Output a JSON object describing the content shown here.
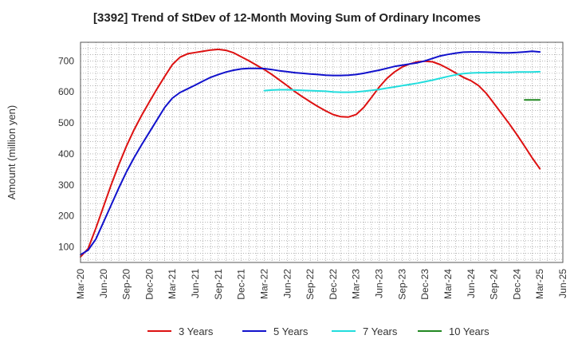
{
  "chart_data": {
    "type": "line",
    "title": "[3392]  Trend of StDev of 12-Month Moving Sum of Ordinary Incomes",
    "xlabel": "",
    "ylabel": "Amount (million yen)",
    "x_tick_labels": [
      "Mar-20",
      "Jun-20",
      "Sep-20",
      "Dec-20",
      "Mar-21",
      "Jun-21",
      "Sep-21",
      "Dec-21",
      "Mar-22",
      "Jun-22",
      "Sep-22",
      "Dec-22",
      "Mar-23",
      "Jun-23",
      "Sep-23",
      "Dec-23",
      "Mar-24",
      "Jun-24",
      "Sep-24",
      "Dec-24",
      "Mar-25",
      "Jun-25"
    ],
    "y_ticks": [
      100,
      200,
      300,
      400,
      500,
      600,
      700
    ],
    "ylim": [
      50,
      760
    ],
    "grid": true,
    "legend_position": "bottom",
    "series": [
      {
        "name": "3 Years",
        "color": "#dd1111",
        "points": [
          [
            "Mar-20",
            68
          ],
          [
            "Apr-20",
            95
          ],
          [
            "May-20",
            160
          ],
          [
            "Jun-20",
            230
          ],
          [
            "Jul-20",
            300
          ],
          [
            "Aug-20",
            365
          ],
          [
            "Sep-20",
            425
          ],
          [
            "Oct-20",
            478
          ],
          [
            "Nov-20",
            525
          ],
          [
            "Dec-20",
            568
          ],
          [
            "Jan-21",
            610
          ],
          [
            "Feb-21",
            650
          ],
          [
            "Mar-21",
            688
          ],
          [
            "Apr-21",
            712
          ],
          [
            "May-21",
            723
          ],
          [
            "Jun-21",
            727
          ],
          [
            "Jul-21",
            731
          ],
          [
            "Aug-21",
            735
          ],
          [
            "Sep-21",
            737
          ],
          [
            "Oct-21",
            734
          ],
          [
            "Nov-21",
            726
          ],
          [
            "Dec-21",
            713
          ],
          [
            "Jan-22",
            700
          ],
          [
            "Feb-22",
            686
          ],
          [
            "Mar-22",
            672
          ],
          [
            "Apr-22",
            656
          ],
          [
            "May-22",
            638
          ],
          [
            "Jun-22",
            620
          ],
          [
            "Jul-22",
            601
          ],
          [
            "Aug-22",
            584
          ],
          [
            "Sep-22",
            568
          ],
          [
            "Oct-22",
            553
          ],
          [
            "Nov-22",
            539
          ],
          [
            "Dec-22",
            527
          ],
          [
            "Jan-23",
            520
          ],
          [
            "Feb-23",
            519
          ],
          [
            "Mar-23",
            527
          ],
          [
            "Apr-23",
            550
          ],
          [
            "May-23",
            582
          ],
          [
            "Jun-23",
            615
          ],
          [
            "Jul-23",
            643
          ],
          [
            "Aug-23",
            664
          ],
          [
            "Sep-23",
            680
          ],
          [
            "Oct-23",
            690
          ],
          [
            "Nov-23",
            697
          ],
          [
            "Dec-23",
            699
          ],
          [
            "Jan-24",
            697
          ],
          [
            "Feb-24",
            688
          ],
          [
            "Mar-24",
            675
          ],
          [
            "Apr-24",
            661
          ],
          [
            "May-24",
            647
          ],
          [
            "Jun-24",
            636
          ],
          [
            "Jul-24",
            620
          ],
          [
            "Aug-24",
            595
          ],
          [
            "Sep-24",
            563
          ],
          [
            "Oct-24",
            530
          ],
          [
            "Nov-24",
            497
          ],
          [
            "Dec-24",
            462
          ],
          [
            "Jan-25",
            425
          ],
          [
            "Feb-25",
            387
          ],
          [
            "Mar-25",
            352
          ]
        ]
      },
      {
        "name": "5 Years",
        "color": "#1111cc",
        "points": [
          [
            "Mar-20",
            75
          ],
          [
            "Apr-20",
            90
          ],
          [
            "May-20",
            125
          ],
          [
            "Jun-20",
            180
          ],
          [
            "Jul-20",
            235
          ],
          [
            "Aug-20",
            290
          ],
          [
            "Sep-20",
            342
          ],
          [
            "Oct-20",
            388
          ],
          [
            "Nov-20",
            430
          ],
          [
            "Dec-20",
            470
          ],
          [
            "Jan-21",
            510
          ],
          [
            "Feb-21",
            550
          ],
          [
            "Mar-21",
            580
          ],
          [
            "Apr-21",
            598
          ],
          [
            "May-21",
            610
          ],
          [
            "Jun-21",
            622
          ],
          [
            "Jul-21",
            635
          ],
          [
            "Aug-21",
            647
          ],
          [
            "Sep-21",
            656
          ],
          [
            "Oct-21",
            664
          ],
          [
            "Nov-21",
            670
          ],
          [
            "Dec-21",
            674
          ],
          [
            "Jan-22",
            676
          ],
          [
            "Feb-22",
            676
          ],
          [
            "Mar-22",
            675
          ],
          [
            "Apr-22",
            672
          ],
          [
            "May-22",
            668
          ],
          [
            "Jun-22",
            665
          ],
          [
            "Jul-22",
            662
          ],
          [
            "Aug-22",
            660
          ],
          [
            "Sep-22",
            658
          ],
          [
            "Oct-22",
            656
          ],
          [
            "Nov-22",
            654
          ],
          [
            "Dec-22",
            653
          ],
          [
            "Jan-23",
            653
          ],
          [
            "Feb-23",
            654
          ],
          [
            "Mar-23",
            656
          ],
          [
            "Apr-23",
            660
          ],
          [
            "May-23",
            665
          ],
          [
            "Jun-23",
            670
          ],
          [
            "Jul-23",
            676
          ],
          [
            "Aug-23",
            682
          ],
          [
            "Sep-23",
            686
          ],
          [
            "Oct-23",
            690
          ],
          [
            "Nov-23",
            694
          ],
          [
            "Dec-23",
            700
          ],
          [
            "Jan-24",
            708
          ],
          [
            "Feb-24",
            716
          ],
          [
            "Mar-24",
            721
          ],
          [
            "Apr-24",
            725
          ],
          [
            "May-24",
            728
          ],
          [
            "Jun-24",
            729
          ],
          [
            "Jul-24",
            729
          ],
          [
            "Aug-24",
            728
          ],
          [
            "Sep-24",
            727
          ],
          [
            "Oct-24",
            726
          ],
          [
            "Nov-24",
            726
          ],
          [
            "Dec-24",
            727
          ],
          [
            "Jan-25",
            729
          ],
          [
            "Feb-25",
            731
          ],
          [
            "Mar-25",
            729
          ]
        ]
      },
      {
        "name": "7 Years",
        "color": "#22dddd",
        "points": [
          [
            "Mar-22",
            604
          ],
          [
            "Apr-22",
            606
          ],
          [
            "May-22",
            607
          ],
          [
            "Jun-22",
            607
          ],
          [
            "Jul-22",
            606
          ],
          [
            "Aug-22",
            605
          ],
          [
            "Sep-22",
            604
          ],
          [
            "Oct-22",
            603
          ],
          [
            "Nov-22",
            602
          ],
          [
            "Dec-22",
            600
          ],
          [
            "Jan-23",
            599
          ],
          [
            "Feb-23",
            599
          ],
          [
            "Mar-23",
            600
          ],
          [
            "Apr-23",
            602
          ],
          [
            "May-23",
            605
          ],
          [
            "Jun-23",
            608
          ],
          [
            "Jul-23",
            612
          ],
          [
            "Aug-23",
            616
          ],
          [
            "Sep-23",
            620
          ],
          [
            "Oct-23",
            624
          ],
          [
            "Nov-23",
            628
          ],
          [
            "Dec-23",
            633
          ],
          [
            "Jan-24",
            638
          ],
          [
            "Feb-24",
            644
          ],
          [
            "Mar-24",
            650
          ],
          [
            "Apr-24",
            655
          ],
          [
            "May-24",
            659
          ],
          [
            "Jun-24",
            661
          ],
          [
            "Jul-24",
            662
          ],
          [
            "Aug-24",
            662
          ],
          [
            "Sep-24",
            663
          ],
          [
            "Oct-24",
            663
          ],
          [
            "Nov-24",
            663
          ],
          [
            "Dec-24",
            664
          ],
          [
            "Jan-25",
            664
          ],
          [
            "Feb-25",
            664
          ],
          [
            "Mar-25",
            665
          ]
        ]
      },
      {
        "name": "10 Years",
        "color": "#228822",
        "points": [
          [
            "Jan-25",
            574
          ],
          [
            "Feb-25",
            574
          ],
          [
            "Mar-25",
            574
          ]
        ]
      }
    ]
  }
}
